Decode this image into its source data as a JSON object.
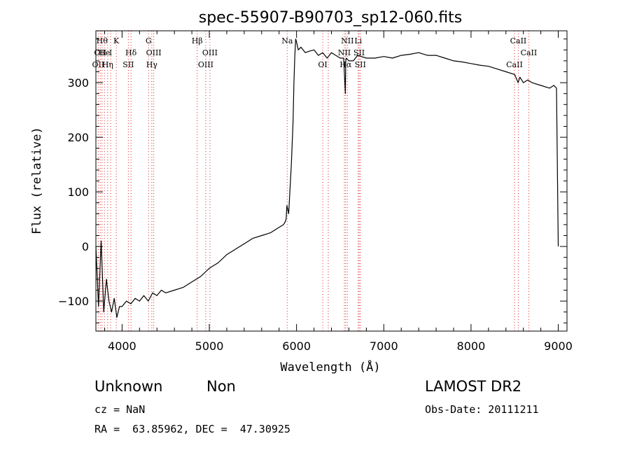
{
  "chart_data": {
    "type": "line",
    "title": "spec-55907-B90703_sp12-060.fits",
    "xlabel": "Wavelength (Å)",
    "ylabel": "Flux (relative)",
    "xlim": [
      3700,
      9100
    ],
    "ylim": [
      -155,
      395
    ],
    "x_ticks": [
      4000,
      5000,
      6000,
      7000,
      8000,
      9000
    ],
    "y_ticks": [
      -100,
      0,
      100,
      200,
      300
    ],
    "grid": false,
    "series": [
      {
        "x": [
          3700,
          3730,
          3760,
          3790,
          3820,
          3850,
          3880,
          3910,
          3940,
          3970,
          4000,
          4050,
          4100,
          4150,
          4200,
          4250,
          4300,
          4350,
          4400,
          4450,
          4500,
          4600,
          4700,
          4800,
          4900,
          5000,
          5100,
          5200,
          5300,
          5400,
          5500,
          5600,
          5700,
          5800,
          5850,
          5870,
          5880,
          5890,
          5910,
          5940,
          5960,
          5970,
          5980,
          5990,
          6000,
          6020,
          6050,
          6100,
          6150,
          6200,
          6250,
          6300,
          6350,
          6400,
          6450,
          6500,
          6540,
          6560,
          6564,
          6570,
          6600,
          6650,
          6700,
          6800,
          6900,
          7000,
          7100,
          7200,
          7300,
          7400,
          7500,
          7600,
          7700,
          7800,
          7900,
          8000,
          8100,
          8200,
          8300,
          8400,
          8500,
          8540,
          8560,
          8600,
          8650,
          8700,
          8800,
          8900,
          8950,
          8980,
          9000
        ],
        "y": [
          0,
          -110,
          10,
          -120,
          -60,
          -100,
          -120,
          -95,
          -130,
          -110,
          -110,
          -100,
          -105,
          -95,
          -100,
          -90,
          -100,
          -85,
          -90,
          -80,
          -85,
          -80,
          -75,
          -65,
          -55,
          -40,
          -30,
          -15,
          -5,
          5,
          15,
          20,
          25,
          35,
          40,
          45,
          50,
          75,
          60,
          150,
          230,
          300,
          350,
          380,
          375,
          360,
          365,
          355,
          358,
          360,
          350,
          355,
          345,
          355,
          350,
          345,
          345,
          280,
          340,
          345,
          340,
          340,
          350,
          345,
          345,
          348,
          345,
          350,
          352,
          355,
          350,
          350,
          345,
          340,
          338,
          335,
          332,
          330,
          325,
          320,
          315,
          300,
          310,
          300,
          305,
          300,
          295,
          290,
          295,
          290,
          0
        ],
        "color": "#000000"
      }
    ],
    "line_markers": [
      {
        "x": 3727,
        "label": "OII",
        "row": 2
      },
      {
        "x": 3750,
        "label": "OII",
        "row": 1
      },
      {
        "x": 3770,
        "label": "Hθ",
        "row": 0
      },
      {
        "x": 3798,
        "label": "He",
        "row": 1
      },
      {
        "x": 3835,
        "label": "Hη",
        "row": 2
      },
      {
        "x": 3869,
        "label": "I",
        "row": 1
      },
      {
        "x": 3934,
        "label": "K",
        "row": 0
      },
      {
        "x": 4102,
        "label": "Hδ",
        "row": 1
      },
      {
        "x": 4072,
        "label": "SII",
        "row": 2
      },
      {
        "x": 4304,
        "label": "G",
        "row": 0
      },
      {
        "x": 4363,
        "label": "OIII",
        "row": 1
      },
      {
        "x": 4341,
        "label": "Hγ",
        "row": 2
      },
      {
        "x": 4861,
        "label": "Hβ",
        "row": 0
      },
      {
        "x": 4959,
        "label": "OIII",
        "row": 2
      },
      {
        "x": 5007,
        "label": "OIII",
        "row": 1
      },
      {
        "x": 5893,
        "label": "Na",
        "row": 0
      },
      {
        "x": 6300,
        "label": "OI",
        "row": 2
      },
      {
        "x": 6364,
        "label": "",
        "row": 1
      },
      {
        "x": 6548,
        "label": "NII",
        "row": 1
      },
      {
        "x": 6563,
        "label": "Hα",
        "row": 2
      },
      {
        "x": 6583,
        "label": "NII",
        "row": 0
      },
      {
        "x": 6707,
        "label": "Li",
        "row": 0
      },
      {
        "x": 6717,
        "label": "SII",
        "row": 1
      },
      {
        "x": 6731,
        "label": "SII",
        "row": 2
      },
      {
        "x": 8498,
        "label": "CaII",
        "row": 2
      },
      {
        "x": 8542,
        "label": "CaII",
        "row": 0
      },
      {
        "x": 8662,
        "label": "CaII",
        "row": 1
      }
    ]
  },
  "footer": {
    "classification": "Unknown",
    "subclass": "Non",
    "survey": "LAMOST DR2",
    "cz": "cz = NaN",
    "obs_date": "Obs-Date: 20111211",
    "coords": "RA =  63.85962, DEC =  47.30925"
  },
  "colors": {
    "spectrum": "#000000",
    "line_marker": "#d62728",
    "axis": "#000000"
  }
}
